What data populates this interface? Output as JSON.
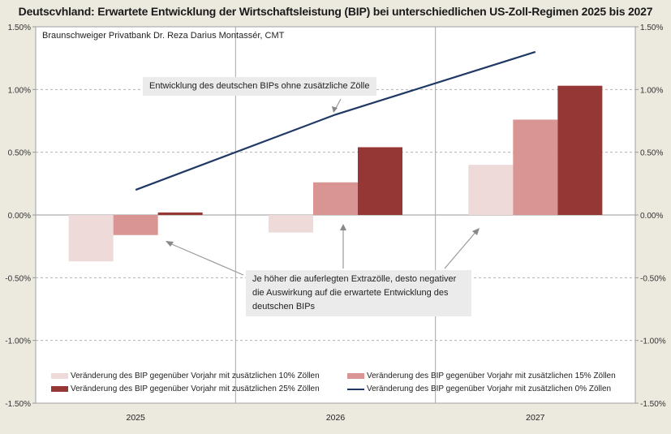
{
  "chart_data": {
    "type": "bar",
    "title": "Deutscvhland: Erwartete Entwicklung der Wirtschaftsleistung (BIP) bei unterschiedlichen US-Zoll-Regimen 2025 bis 2027",
    "subtitle": "Braunschweiger  Privatbank  Dr. Reza Darius Montassér, CMT",
    "categories": [
      "2025",
      "2026",
      "2027"
    ],
    "ylim": [
      -1.5,
      1.5
    ],
    "yticks": [
      "1.50%",
      "1.00%",
      "0.50%",
      "0.00%",
      "-0.50%",
      "-1.00%",
      "-1.50%"
    ],
    "ytick_values": [
      1.5,
      1.0,
      0.5,
      0.0,
      -0.5,
      -1.0,
      -1.5
    ],
    "grid": "dashed horizontal",
    "unit": "%",
    "series": [
      {
        "name": "Veränderung des BIP gegenüber Vorjahr mit zusätzlichen 10% Zöllen",
        "kind": "bar",
        "color": "#efdada",
        "values": [
          -0.37,
          -0.14,
          0.4
        ]
      },
      {
        "name": "Veränderung des BIP gegenüber Vorjahr mit zusätzlichen 15% Zöllen",
        "kind": "bar",
        "color": "#d99594",
        "values": [
          -0.16,
          0.26,
          0.76
        ]
      },
      {
        "name": "Veränderung des BIP gegenüber Vorjahr mit zusätzlichen 25% Zöllen",
        "kind": "bar",
        "color": "#953735",
        "values": [
          0.02,
          0.54,
          1.03
        ]
      },
      {
        "name": "Veränderung des BIP gegenüber Vorjahr mit zusätzlichen 0% Zöllen",
        "kind": "line",
        "color": "#1f3864",
        "values": [
          0.2,
          0.8,
          1.3
        ]
      }
    ],
    "annotations": [
      "Entwicklung des deutschen BIPs ohne zusätzliche Zölle",
      "Je höher die auferlegten Extrazölle, desto negativer die Auswirkung  auf die erwartete Entwicklung  des deutschen BIPs"
    ],
    "legend_position": "bottom-inside"
  }
}
